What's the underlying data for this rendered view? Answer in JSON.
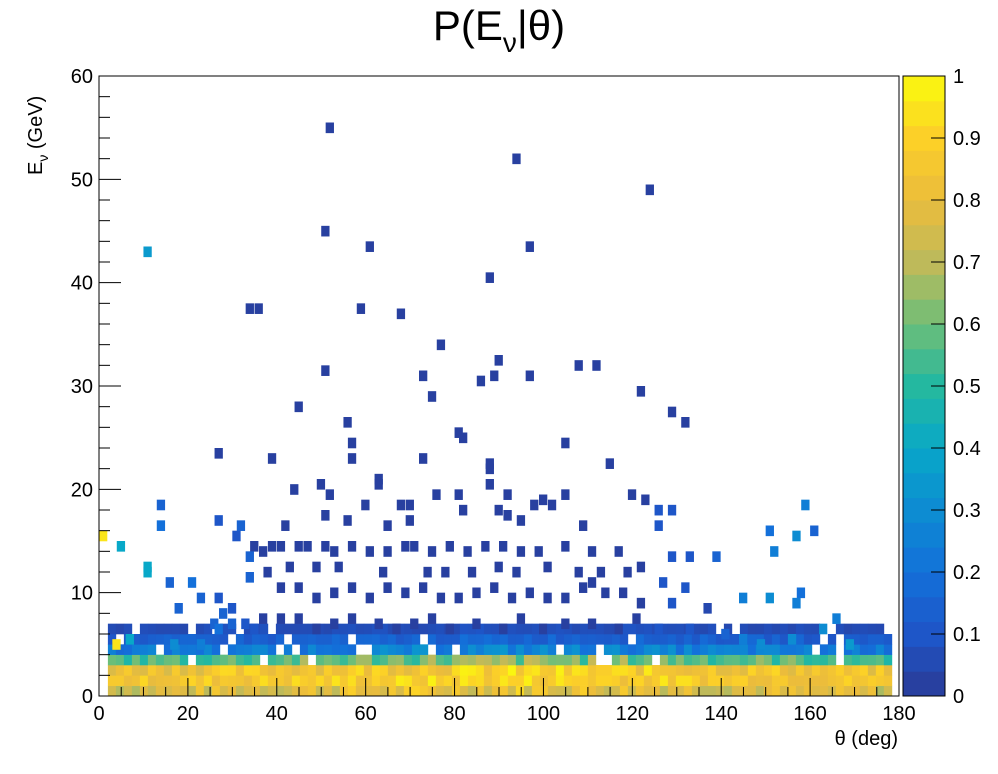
{
  "chart_data": {
    "type": "heatmap",
    "title_parts": {
      "prefix": "P(E",
      "sub": "ν",
      "suffix": "|θ)"
    },
    "xlabel": "θ (deg)",
    "ylabel_parts": {
      "main": "E",
      "sub": "ν",
      "rest": " (GeV)"
    },
    "xlim": [
      0,
      180
    ],
    "ylim": [
      0,
      60
    ],
    "zlim": [
      0,
      1
    ],
    "x_ticks": [
      "0",
      "20",
      "40",
      "60",
      "80",
      "100",
      "120",
      "140",
      "160",
      "180"
    ],
    "y_ticks": [
      "0",
      "10",
      "20",
      "30",
      "40",
      "50",
      "60"
    ],
    "z_ticks": [
      "0",
      "0.1",
      "0.2",
      "0.3",
      "0.4",
      "0.5",
      "0.6",
      "0.7",
      "0.8",
      "0.9",
      "1"
    ],
    "bin_width_x": 1.8,
    "bin_width_y": 1.0,
    "palette": "kBird",
    "sparse_points": [
      [
        51,
        55,
        0.02
      ],
      [
        93,
        52,
        0.02
      ],
      [
        123,
        49,
        0.02
      ],
      [
        50,
        45,
        0.02
      ],
      [
        10,
        43,
        0.35
      ],
      [
        60,
        43.5,
        0.02
      ],
      [
        96,
        43.5,
        0.02
      ],
      [
        87,
        40.5,
        0.02
      ],
      [
        33,
        37.5,
        0.02
      ],
      [
        35,
        37.5,
        0.02
      ],
      [
        58,
        37.5,
        0.02
      ],
      [
        67,
        37,
        0.02
      ],
      [
        76,
        34,
        0.02
      ],
      [
        89,
        32.5,
        0.02
      ],
      [
        50,
        31.5,
        0.02
      ],
      [
        107,
        32,
        0.02
      ],
      [
        111,
        32,
        0.02
      ],
      [
        72,
        31,
        0.02
      ],
      [
        88,
        31,
        0.02
      ],
      [
        96,
        31,
        0.02
      ],
      [
        85,
        30.5,
        0.02
      ],
      [
        121,
        29.5,
        0.02
      ],
      [
        74,
        29,
        0.02
      ],
      [
        44,
        28,
        0.02
      ],
      [
        128,
        27.5,
        0.02
      ],
      [
        131,
        26.5,
        0.02
      ],
      [
        55,
        26.5,
        0.02
      ],
      [
        80,
        25.5,
        0.02
      ],
      [
        81,
        25,
        0.02
      ],
      [
        56,
        24.5,
        0.02
      ],
      [
        104,
        24.5,
        0.02
      ],
      [
        26,
        23.5,
        0.02
      ],
      [
        38,
        23,
        0.02
      ],
      [
        56,
        23,
        0.02
      ],
      [
        72,
        23,
        0.02
      ],
      [
        87,
        22.5,
        0.02
      ],
      [
        114,
        22.5,
        0.02
      ],
      [
        87,
        22,
        0.02
      ],
      [
        62,
        21,
        0.02
      ],
      [
        62,
        20.5,
        0.02
      ],
      [
        43,
        20,
        0.02
      ],
      [
        49,
        20.5,
        0.02
      ],
      [
        51,
        19.5,
        0.02
      ],
      [
        87,
        20.5,
        0.02
      ],
      [
        75,
        19.5,
        0.02
      ],
      [
        80,
        19.5,
        0.02
      ],
      [
        91,
        19.5,
        0.02
      ],
      [
        99,
        19,
        0.02
      ],
      [
        104,
        19.5,
        0.02
      ],
      [
        119,
        19.5,
        0.02
      ],
      [
        122,
        19,
        0.02
      ],
      [
        13,
        18.5,
        0.15
      ],
      [
        158,
        18.5,
        0.25
      ],
      [
        59,
        18.5,
        0.02
      ],
      [
        67,
        18.5,
        0.02
      ],
      [
        69,
        18.5,
        0.02
      ],
      [
        81,
        18,
        0.02
      ],
      [
        89,
        18,
        0.02
      ],
      [
        91,
        17.5,
        0.02
      ],
      [
        97,
        18.5,
        0.02
      ],
      [
        101,
        18.5,
        0.02
      ],
      [
        125,
        18,
        0.1
      ],
      [
        128,
        18,
        0.1
      ],
      [
        0,
        15.5,
        0.95
      ],
      [
        4,
        14.5,
        0.4
      ],
      [
        13,
        16.5,
        0.2
      ],
      [
        26,
        17,
        0.1
      ],
      [
        31,
        16.5,
        0.15
      ],
      [
        41,
        16.5,
        0.02
      ],
      [
        50,
        17.5,
        0.02
      ],
      [
        55,
        17,
        0.02
      ],
      [
        64,
        16.5,
        0.02
      ],
      [
        69,
        17,
        0.02
      ],
      [
        94,
        17,
        0.02
      ],
      [
        108,
        16.5,
        0.02
      ],
      [
        125,
        16.5,
        0.1
      ],
      [
        150,
        16,
        0.2
      ],
      [
        156,
        15.5,
        0.3
      ],
      [
        160,
        16,
        0.15
      ],
      [
        30,
        15.5,
        0.1
      ],
      [
        34,
        14.5,
        0.02
      ],
      [
        36,
        14,
        0.02
      ],
      [
        38,
        14.5,
        0.02
      ],
      [
        40,
        14.5,
        0.02
      ],
      [
        44,
        14.5,
        0.02
      ],
      [
        46,
        14.5,
        0.02
      ],
      [
        50,
        14.5,
        0.02
      ],
      [
        52,
        14,
        0.02
      ],
      [
        56,
        14.5,
        0.02
      ],
      [
        60,
        14,
        0.02
      ],
      [
        64,
        14,
        0.02
      ],
      [
        68,
        14.5,
        0.02
      ],
      [
        70,
        14.5,
        0.02
      ],
      [
        74,
        14,
        0.02
      ],
      [
        78,
        14.5,
        0.02
      ],
      [
        82,
        14,
        0.02
      ],
      [
        86,
        14.5,
        0.02
      ],
      [
        90,
        14.5,
        0.02
      ],
      [
        94,
        14,
        0.02
      ],
      [
        98,
        14,
        0.02
      ],
      [
        104,
        14.5,
        0.02
      ],
      [
        110,
        14,
        0.02
      ],
      [
        116,
        14,
        0.02
      ],
      [
        128,
        13.5,
        0.1
      ],
      [
        132,
        13.5,
        0.1
      ],
      [
        138,
        13.5,
        0.15
      ],
      [
        151,
        14,
        0.25
      ],
      [
        10,
        12.5,
        0.4
      ],
      [
        10,
        12,
        0.4
      ],
      [
        33,
        13.5,
        0.15
      ],
      [
        15,
        11,
        0.15
      ],
      [
        20,
        11,
        0.2
      ],
      [
        33,
        11.5,
        0.15
      ],
      [
        37,
        12,
        0.02
      ],
      [
        42,
        12.5,
        0.02
      ],
      [
        48,
        12.5,
        0.02
      ],
      [
        53,
        12.5,
        0.02
      ],
      [
        63,
        12,
        0.02
      ],
      [
        73,
        12,
        0.02
      ],
      [
        77,
        12,
        0.02
      ],
      [
        83,
        12,
        0.02
      ],
      [
        89,
        12.5,
        0.02
      ],
      [
        93,
        12,
        0.02
      ],
      [
        100,
        12.5,
        0.02
      ],
      [
        107,
        12,
        0.02
      ],
      [
        112,
        12,
        0.02
      ],
      [
        118,
        12,
        0.02
      ],
      [
        121,
        12.5,
        0.02
      ],
      [
        126,
        11,
        0.1
      ],
      [
        131,
        10.5,
        0.1
      ],
      [
        110,
        11,
        0.02
      ],
      [
        22,
        9.5,
        0.15
      ],
      [
        26,
        9.5,
        0.1
      ],
      [
        17,
        8.5,
        0.15
      ],
      [
        27,
        8,
        0.15
      ],
      [
        29,
        8.5,
        0.1
      ],
      [
        40,
        10.5,
        0.02
      ],
      [
        44,
        10.5,
        0.02
      ],
      [
        48,
        9.5,
        0.02
      ],
      [
        52,
        10,
        0.02
      ],
      [
        56,
        10.5,
        0.02
      ],
      [
        60,
        9.5,
        0.02
      ],
      [
        64,
        10.5,
        0.02
      ],
      [
        68,
        10,
        0.02
      ],
      [
        72,
        10.5,
        0.02
      ],
      [
        76,
        9.5,
        0.02
      ],
      [
        80,
        9.5,
        0.02
      ],
      [
        84,
        10,
        0.02
      ],
      [
        88,
        10.5,
        0.02
      ],
      [
        92,
        9.5,
        0.02
      ],
      [
        96,
        10,
        0.02
      ],
      [
        100,
        9.5,
        0.02
      ],
      [
        104,
        9.5,
        0.02
      ],
      [
        108,
        10.5,
        0.02
      ],
      [
        113,
        10,
        0.02
      ],
      [
        117,
        10,
        0.02
      ],
      [
        121,
        9,
        0.02
      ],
      [
        128,
        9,
        0.1
      ],
      [
        136,
        8.5,
        0.05
      ],
      [
        144,
        9.5,
        0.25
      ],
      [
        150,
        9.5,
        0.3
      ],
      [
        157,
        10,
        0.2
      ],
      [
        156,
        9,
        0.25
      ],
      [
        25,
        7,
        0.15
      ],
      [
        29,
        7,
        0.15
      ],
      [
        26,
        6.5,
        0.2
      ],
      [
        32,
        7,
        0.1
      ],
      [
        34,
        6.5,
        0.1
      ],
      [
        36,
        7.5,
        0.02
      ],
      [
        40,
        7.5,
        0.02
      ],
      [
        44,
        7.5,
        0.02
      ],
      [
        48,
        6.5,
        0.02
      ],
      [
        52,
        7,
        0.02
      ],
      [
        56,
        7.5,
        0.02
      ],
      [
        62,
        7,
        0.02
      ],
      [
        66,
        6.5,
        0.02
      ],
      [
        70,
        7,
        0.02
      ],
      [
        74,
        7.5,
        0.02
      ],
      [
        78,
        6.5,
        0.02
      ],
      [
        84,
        7,
        0.02
      ],
      [
        90,
        6.5,
        0.02
      ],
      [
        94,
        7.5,
        0.02
      ],
      [
        99,
        6.5,
        0.02
      ],
      [
        104,
        7,
        0.02
      ],
      [
        110,
        7,
        0.02
      ],
      [
        116,
        6.5,
        0.02
      ],
      [
        120,
        7.5,
        0.02
      ],
      [
        125,
        6.5,
        0.1
      ],
      [
        132,
        6.5,
        0.1
      ],
      [
        140,
        6,
        0.15
      ],
      [
        144,
        5.5,
        0.25
      ],
      [
        155,
        5.5,
        0.3
      ],
      [
        162,
        6.5,
        0.3
      ],
      [
        165,
        7.5,
        0.25
      ],
      [
        168,
        5,
        0.35
      ],
      [
        3,
        5,
        0.95
      ],
      [
        6,
        5.5,
        0.4
      ],
      [
        16,
        5,
        0.3
      ],
      [
        22,
        5,
        0.25
      ],
      [
        148,
        5,
        0.3
      ]
    ],
    "dense_band": {
      "x_range": [
        2,
        178
      ],
      "rows": [
        {
          "e": 0.5,
          "z_low": 0.55,
          "z_high": 0.95
        },
        {
          "e": 1.5,
          "z_low": 0.7,
          "z_high": 1.0
        },
        {
          "e": 2.5,
          "z_low": 0.65,
          "z_high": 1.0
        },
        {
          "e": 3.5,
          "z_low": 0.35,
          "z_high": 0.75
        },
        {
          "e": 4.5,
          "z_low": 0.1,
          "z_high": 0.35
        },
        {
          "e": 5.5,
          "z_low": 0.05,
          "z_high": 0.2
        },
        {
          "e": 6.5,
          "z_low": 0.02,
          "z_high": 0.1
        }
      ]
    }
  }
}
